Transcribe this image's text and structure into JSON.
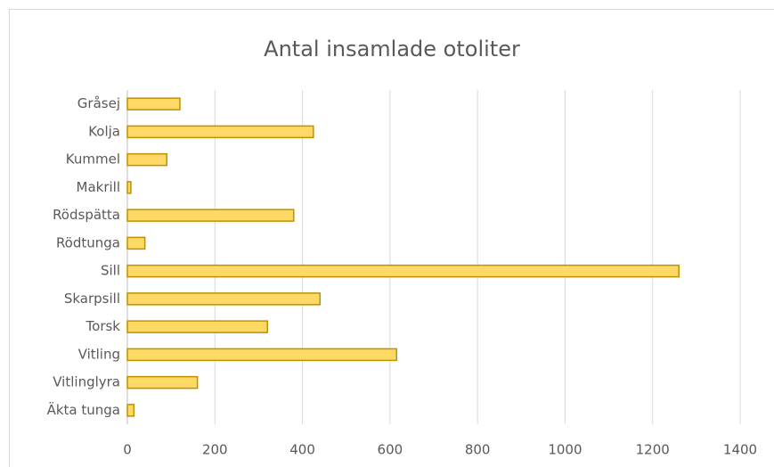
{
  "chart_data": {
    "type": "bar",
    "orientation": "horizontal",
    "title": "Antal insamlade otoliter",
    "categories": [
      "Gråsej",
      "Kolja",
      "Kummel",
      "Makrill",
      "Rödspätta",
      "Rödtunga",
      "Sill",
      "Skarpsill",
      "Torsk",
      "Vitling",
      "Vitlinglyra",
      "Äkta tunga"
    ],
    "values": [
      120,
      425,
      90,
      8,
      380,
      40,
      1260,
      440,
      320,
      615,
      160,
      15
    ],
    "color": "#ffd966",
    "edge_color": "#bf9000",
    "xlim": [
      0,
      1400
    ],
    "xticks": [
      0,
      200,
      400,
      600,
      800,
      1000,
      1200,
      1400
    ],
    "grid": true
  }
}
